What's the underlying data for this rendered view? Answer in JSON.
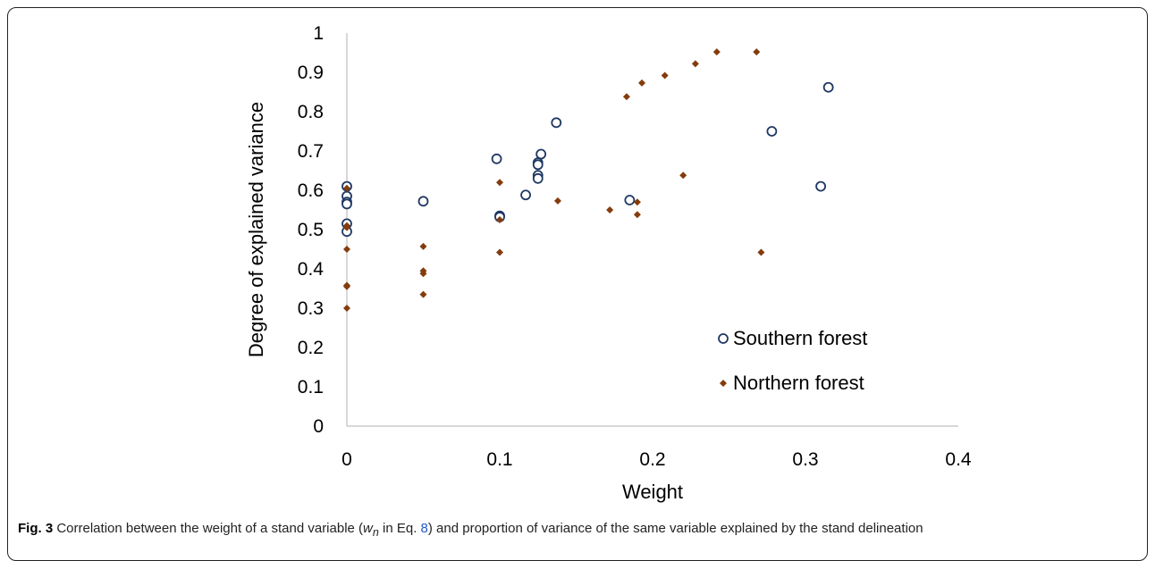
{
  "chart_data": {
    "type": "scatter",
    "xlabel": "Weight",
    "ylabel": "Degree of explained variance",
    "xlim": [
      0,
      0.4
    ],
    "ylim": [
      0,
      1
    ],
    "x_ticks": [
      "0",
      "0.1",
      "0.2",
      "0.3",
      "0.4"
    ],
    "y_ticks": [
      "0",
      "0.1",
      "0.2",
      "0.3",
      "0.4",
      "0.5",
      "0.6",
      "0.7",
      "0.8",
      "0.9",
      "1"
    ],
    "grid": false,
    "legend_position": "bottom-right",
    "series": [
      {
        "name": "Southern forest",
        "marker": "open-circle",
        "color": "#1f3864",
        "points": [
          [
            0,
            0.61
          ],
          [
            0,
            0.585
          ],
          [
            0,
            0.57
          ],
          [
            0,
            0.565
          ],
          [
            0,
            0.515
          ],
          [
            0,
            0.495
          ],
          [
            0.05,
            0.572
          ],
          [
            0.098,
            0.68
          ],
          [
            0.1,
            0.535
          ],
          [
            0.1,
            0.532
          ],
          [
            0.117,
            0.588
          ],
          [
            0.125,
            0.67
          ],
          [
            0.125,
            0.665
          ],
          [
            0.125,
            0.638
          ],
          [
            0.125,
            0.63
          ],
          [
            0.127,
            0.692
          ],
          [
            0.137,
            0.772
          ],
          [
            0.185,
            0.575
          ],
          [
            0.278,
            0.75
          ],
          [
            0.31,
            0.61
          ],
          [
            0.315,
            0.862
          ]
        ]
      },
      {
        "name": "Northern forest",
        "marker": "filled-diamond",
        "color": "#843c0c",
        "points": [
          [
            0,
            0.605
          ],
          [
            0,
            0.51
          ],
          [
            0,
            0.505
          ],
          [
            0,
            0.45
          ],
          [
            0,
            0.358
          ],
          [
            0,
            0.355
          ],
          [
            0,
            0.3
          ],
          [
            0.05,
            0.457
          ],
          [
            0.05,
            0.395
          ],
          [
            0.05,
            0.388
          ],
          [
            0.05,
            0.335
          ],
          [
            0.1,
            0.62
          ],
          [
            0.1,
            0.525
          ],
          [
            0.1,
            0.442
          ],
          [
            0.138,
            0.573
          ],
          [
            0.172,
            0.55
          ],
          [
            0.183,
            0.838
          ],
          [
            0.19,
            0.57
          ],
          [
            0.19,
            0.538
          ],
          [
            0.193,
            0.873
          ],
          [
            0.208,
            0.892
          ],
          [
            0.22,
            0.638
          ],
          [
            0.228,
            0.922
          ],
          [
            0.242,
            0.952
          ],
          [
            0.268,
            0.952
          ],
          [
            0.271,
            0.442
          ]
        ]
      }
    ]
  },
  "caption": {
    "label": "Fig. 3",
    "text_before_symbol": " Correlation between the weight of a stand variable (",
    "symbol": "w",
    "symbol_sub": "n",
    "text_in": " in Eq. ",
    "eq_ref": "8",
    "text_after": ") and proportion of variance of the same variable explained by the stand delineation"
  }
}
